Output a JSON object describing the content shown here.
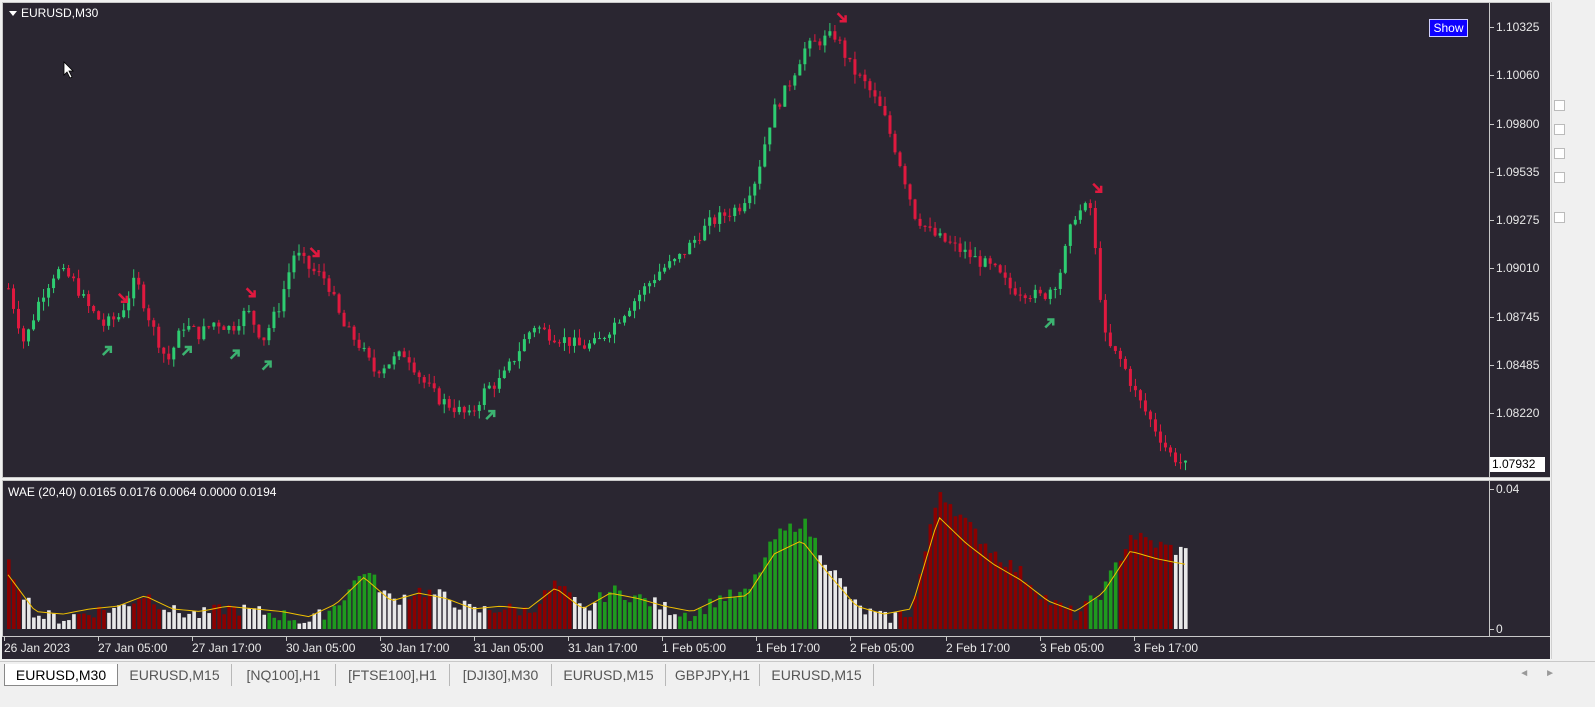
{
  "window": {
    "symbol_title": "EURUSD,M30"
  },
  "buttons": {
    "show_label": "Show"
  },
  "price_axis": {
    "labels": [
      "1.10325",
      "1.10060",
      "1.09800",
      "1.09535",
      "1.09275",
      "1.09010",
      "1.08745",
      "1.08485",
      "1.08220"
    ],
    "current_price": "1.07932"
  },
  "indicator": {
    "title": "WAE (20,40) 0.0165 0.0176 0.0064 0.0000 0.0194",
    "axis_top": "0.04",
    "axis_bottom": "0"
  },
  "time_axis": {
    "labels": [
      "26 Jan 2023",
      "27 Jan 05:00",
      "27 Jan 17:00",
      "30 Jan 05:00",
      "30 Jan 17:00",
      "31 Jan 05:00",
      "31 Jan 17:00",
      "1 Feb 05:00",
      "1 Feb 17:00",
      "2 Feb 05:00",
      "2 Feb 17:00",
      "3 Feb 05:00",
      "3 Feb 17:00"
    ]
  },
  "tabs": [
    "EURUSD,M30",
    "EURUSD,M15",
    "[NQ100],H1",
    "[FTSE100],H1",
    "[DJI30],M30",
    "EURUSD,M15",
    "GBPJPY,H1",
    "EURUSD,M15"
  ],
  "active_tab": 0,
  "colors": {
    "background": "#2a2631",
    "bull": "#2ecc71",
    "bear": "#e0193f",
    "hist_green": "#1e9a1e",
    "hist_red": "#8b0000",
    "hist_white": "#e8e8e8",
    "signal_line": "#f0c000"
  },
  "chart_data": {
    "type": "candlestick",
    "price_path": [
      1.089,
      1.086,
      1.0885,
      1.09,
      1.0895,
      1.088,
      1.087,
      1.0875,
      1.0895,
      1.087,
      1.085,
      1.087,
      1.0865,
      1.0872,
      1.0868,
      1.0878,
      1.0862,
      1.088,
      1.091,
      1.09,
      1.0895,
      1.087,
      1.086,
      1.0845,
      1.085,
      1.0855,
      1.084,
      1.083,
      1.0825,
      1.082,
      1.0835,
      1.084,
      1.0855,
      1.087,
      1.0865,
      1.0862,
      1.0858,
      1.086,
      1.087,
      1.088,
      1.089,
      1.09,
      1.0905,
      1.0915,
      1.0925,
      1.093,
      1.0935,
      1.095,
      1.0985,
      1.1,
      1.102,
      1.1025,
      1.1028,
      1.101,
      1.1,
      1.0985,
      1.096,
      1.093,
      1.092,
      1.0915,
      1.091,
      1.0905,
      1.09,
      1.089,
      1.0888,
      1.0885,
      1.0895,
      1.093,
      1.0935,
      1.086,
      1.085,
      1.083,
      1.0815,
      1.08,
      1.0793
    ],
    "signals": [
      {
        "dir": "up",
        "i": 6
      },
      {
        "dir": "down",
        "i": 7
      },
      {
        "dir": "up",
        "i": 11
      },
      {
        "dir": "up",
        "i": 14
      },
      {
        "dir": "down",
        "i": 15
      },
      {
        "dir": "up",
        "i": 16
      },
      {
        "dir": "down",
        "i": 19
      },
      {
        "dir": "up",
        "i": 30
      },
      {
        "dir": "down",
        "i": 52
      },
      {
        "dir": "down",
        "i": 68
      },
      {
        "dir": "up",
        "i": 65
      }
    ],
    "wae_hist": [
      {
        "c": "r",
        "v": 0.018
      },
      {
        "c": "w",
        "v": 0.004
      },
      {
        "c": "w",
        "v": 0.003
      },
      {
        "c": "r",
        "v": 0.005
      },
      {
        "c": "w",
        "v": 0.006
      },
      {
        "c": "r",
        "v": 0.01
      },
      {
        "c": "w",
        "v": 0.005
      },
      {
        "c": "w",
        "v": 0.004
      },
      {
        "c": "r",
        "v": 0.006
      },
      {
        "c": "w",
        "v": 0.005
      },
      {
        "c": "g",
        "v": 0.004
      },
      {
        "c": "w",
        "v": 0.002
      },
      {
        "c": "g",
        "v": 0.007
      },
      {
        "c": "g",
        "v": 0.017
      },
      {
        "c": "w",
        "v": 0.008
      },
      {
        "c": "r",
        "v": 0.011
      },
      {
        "c": "w",
        "v": 0.009
      },
      {
        "c": "w",
        "v": 0.005
      },
      {
        "c": "r",
        "v": 0.006
      },
      {
        "c": "r",
        "v": 0.005
      },
      {
        "c": "r",
        "v": 0.013
      },
      {
        "c": "w",
        "v": 0.005
      },
      {
        "c": "g",
        "v": 0.011
      },
      {
        "c": "g",
        "v": 0.009
      },
      {
        "c": "w",
        "v": 0.006
      },
      {
        "c": "g",
        "v": 0.004
      },
      {
        "c": "g",
        "v": 0.009
      },
      {
        "c": "g",
        "v": 0.01
      },
      {
        "c": "g",
        "v": 0.026
      },
      {
        "c": "g",
        "v": 0.031
      },
      {
        "c": "w",
        "v": 0.018
      },
      {
        "c": "w",
        "v": 0.006
      },
      {
        "c": "w",
        "v": 0.003
      },
      {
        "c": "r",
        "v": 0.005
      },
      {
        "c": "r",
        "v": 0.04
      },
      {
        "c": "r",
        "v": 0.03
      },
      {
        "c": "r",
        "v": 0.022
      },
      {
        "c": "r",
        "v": 0.016
      },
      {
        "c": "r",
        "v": 0.008
      },
      {
        "c": "r",
        "v": 0.004
      },
      {
        "c": "g",
        "v": 0.011
      },
      {
        "c": "r",
        "v": 0.027
      },
      {
        "c": "r",
        "v": 0.024
      },
      {
        "c": "w",
        "v": 0.022
      }
    ],
    "price_min": 1.079,
    "price_max": 1.1035,
    "wae_max": 0.04
  }
}
